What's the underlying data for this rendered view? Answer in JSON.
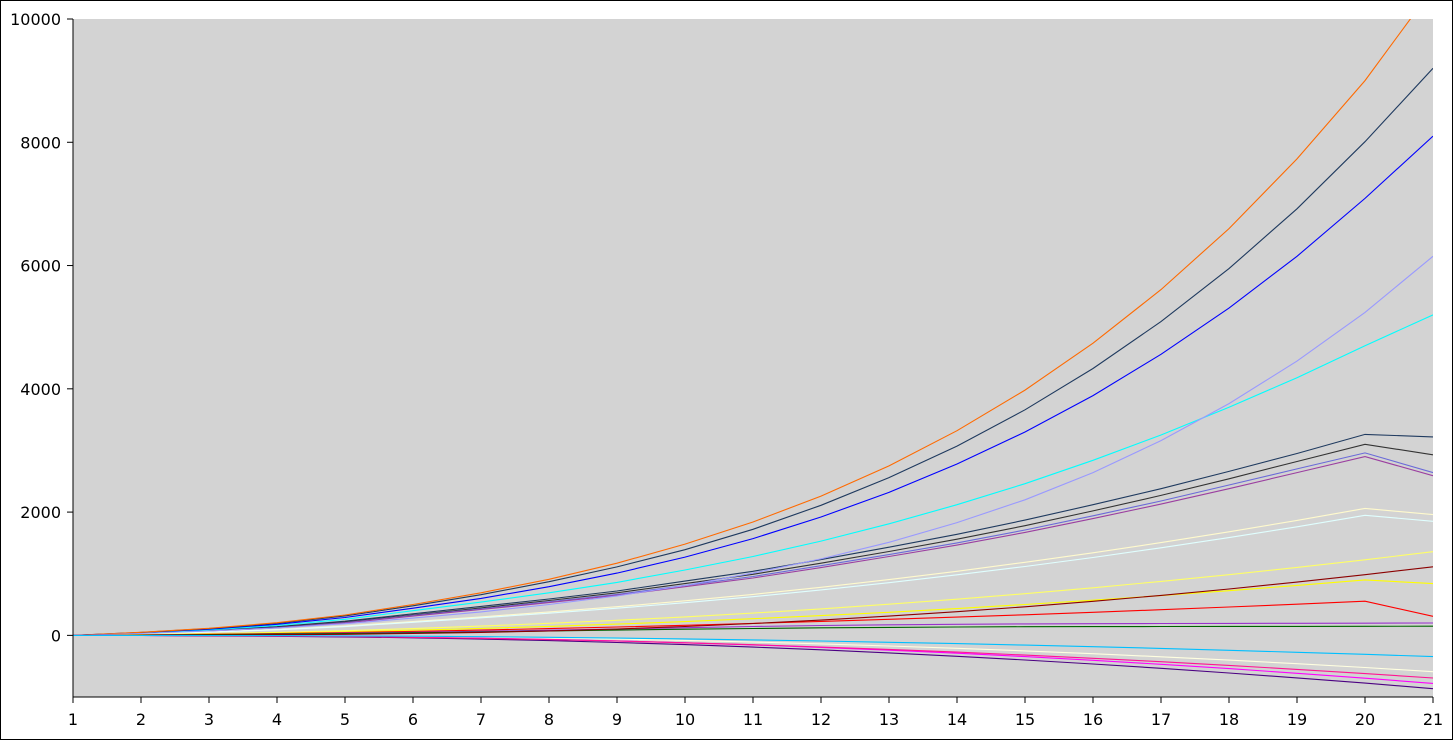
{
  "chart_data": {
    "type": "line",
    "title": "",
    "xlabel": "",
    "ylabel": "",
    "xlim": [
      1,
      21
    ],
    "ylim": [
      -1000,
      10000
    ],
    "x_ticks": [
      "1",
      "2",
      "3",
      "4",
      "5",
      "6",
      "7",
      "8",
      "9",
      "10",
      "11",
      "12",
      "13",
      "14",
      "15",
      "16",
      "17",
      "18",
      "19",
      "20",
      "21"
    ],
    "y_ticks": [
      "0",
      "2000",
      "4000",
      "6000",
      "8000",
      "10000"
    ],
    "grid": false,
    "legend": "none",
    "plot_background": "#d3d3d3",
    "x": [
      1,
      2,
      3,
      4,
      5,
      6,
      7,
      8,
      9,
      10,
      11,
      12,
      13,
      14,
      15,
      16,
      17,
      18,
      19,
      20,
      21
    ],
    "series": [
      {
        "color": "#1f3a5f",
        "values": [
          0,
          35,
          80,
          140,
          230,
          350,
          470,
          590,
          720,
          880,
          1040,
          1230,
          1430,
          1640,
          1870,
          2120,
          2380,
          2660,
          2950,
          3260,
          3220
        ]
      },
      {
        "color": "#333333",
        "values": [
          0,
          32,
          75,
          130,
          215,
          330,
          445,
          565,
          690,
          840,
          990,
          1170,
          1360,
          1560,
          1780,
          2020,
          2270,
          2540,
          2820,
          3100,
          2930
        ]
      },
      {
        "color": "#6a6ad8",
        "values": [
          0,
          30,
          70,
          125,
          205,
          320,
          430,
          545,
          665,
          810,
          955,
          1130,
          1310,
          1500,
          1710,
          1940,
          2180,
          2440,
          2700,
          2960,
          2640
        ]
      },
      {
        "color": "#9b3fa0",
        "values": [
          0,
          30,
          68,
          122,
          200,
          312,
          420,
          532,
          650,
          790,
          930,
          1100,
          1280,
          1465,
          1670,
          1895,
          2130,
          2380,
          2640,
          2900,
          2590
        ]
      },
      {
        "color": "#fffacd",
        "values": [
          0,
          25,
          55,
          95,
          150,
          225,
          300,
          380,
          465,
          560,
          665,
          780,
          905,
          1040,
          1185,
          1340,
          1505,
          1680,
          1865,
          2060,
          1960
        ]
      },
      {
        "color": "#e0ffff",
        "values": [
          0,
          24,
          52,
          90,
          142,
          212,
          285,
          360,
          440,
          530,
          628,
          737,
          855,
          982,
          1118,
          1264,
          1420,
          1586,
          1762,
          1948,
          1850
        ]
      },
      {
        "color": "#00ffff",
        "values": [
          0,
          40,
          90,
          160,
          260,
          400,
          540,
          690,
          860,
          1060,
          1280,
          1530,
          1810,
          2120,
          2460,
          2840,
          3250,
          3700,
          4180,
          4700,
          5200
        ]
      },
      {
        "color": "#0000ff",
        "values": [
          0,
          45,
          100,
          180,
          290,
          440,
          600,
          790,
          1010,
          1270,
          1570,
          1920,
          2320,
          2780,
          3300,
          3890,
          4560,
          5310,
          6150,
          7090,
          8100
        ]
      },
      {
        "color": "#1f3a5f",
        "values": [
          0,
          48,
          110,
          195,
          315,
          480,
          660,
          870,
          1110,
          1390,
          1720,
          2110,
          2560,
          3070,
          3660,
          4330,
          5090,
          5950,
          6920,
          8010,
          9200
        ]
      },
      {
        "color": "#ff6a00",
        "values": [
          0,
          50,
          115,
          205,
          330,
          500,
          690,
          910,
          1170,
          1480,
          1840,
          2260,
          2750,
          3320,
          3980,
          4740,
          5610,
          6600,
          7730,
          9000,
          10500
        ]
      },
      {
        "color": "#9999ff",
        "values": [
          0,
          30,
          70,
          120,
          190,
          280,
          380,
          500,
          640,
          810,
          1010,
          1240,
          1510,
          1830,
          2200,
          2640,
          3160,
          3760,
          4450,
          5240,
          6150
        ]
      },
      {
        "color": "#ffff66",
        "values": [
          0,
          12,
          28,
          48,
          75,
          110,
          150,
          195,
          245,
          300,
          362,
          430,
          505,
          587,
          676,
          772,
          875,
          985,
          1102,
          1226,
          1358
        ]
      },
      {
        "color": "#ffff00",
        "values": [
          0,
          10,
          22,
          38,
          58,
          84,
          113,
          146,
          183,
          224,
          270,
          320,
          375,
          435,
          500,
          570,
          645,
          725,
          810,
          900,
          840
        ]
      },
      {
        "color": "#ff0000",
        "values": [
          0,
          8,
          18,
          30,
          45,
          64,
          86,
          110,
          136,
          164,
          194,
          226,
          260,
          296,
          334,
          374,
          416,
          460,
          506,
          554,
          310
        ]
      },
      {
        "color": "#9932cc",
        "values": [
          0,
          6,
          14,
          24,
          36,
          50,
          66,
          84,
          104,
          124,
          144,
          160,
          172,
          180,
          186,
          190,
          192,
          194,
          196,
          198,
          200
        ]
      },
      {
        "color": "#006400",
        "values": [
          0,
          5,
          12,
          20,
          30,
          42,
          55,
          70,
          86,
          100,
          112,
          122,
          130,
          136,
          140,
          142,
          144,
          145,
          146,
          147,
          148
        ]
      },
      {
        "color": "#ff00ff",
        "values": [
          0,
          -2,
          -5,
          -10,
          -18,
          -30,
          -45,
          -65,
          -90,
          -120,
          -155,
          -195,
          -240,
          -290,
          -345,
          -405,
          -470,
          -540,
          -615,
          -695,
          -780
        ]
      },
      {
        "color": "#ffffe0",
        "values": [
          0,
          -1,
          -3,
          -6,
          -10,
          -18,
          -28,
          -42,
          -60,
          -82,
          -108,
          -138,
          -172,
          -210,
          -252,
          -298,
          -348,
          -402,
          -460,
          -522,
          -590
        ]
      },
      {
        "color": "#8b0000",
        "values": [
          0,
          2,
          5,
          10,
          18,
          30,
          48,
          72,
          104,
          144,
          192,
          248,
          312,
          384,
          464,
          552,
          648,
          752,
          864,
          984,
          1112
        ]
      },
      {
        "color": "#4b0082",
        "values": [
          0,
          -3,
          -8,
          -15,
          -25,
          -40,
          -60,
          -85,
          -115,
          -150,
          -190,
          -235,
          -285,
          -340,
          -400,
          -465,
          -535,
          -610,
          -690,
          -775,
          -865
        ]
      },
      {
        "color": "#ff1493",
        "values": [
          0,
          -2,
          -6,
          -12,
          -20,
          -32,
          -48,
          -68,
          -92,
          -120,
          -152,
          -188,
          -228,
          -272,
          -320,
          -372,
          -428,
          -488,
          -552,
          -620,
          -692
        ]
      },
      {
        "color": "#00bfff",
        "values": [
          0,
          -1,
          -2,
          -4,
          -8,
          -14,
          -22,
          -32,
          -44,
          -58,
          -74,
          -92,
          -112,
          -134,
          -158,
          -184,
          -212,
          -242,
          -274,
          -308,
          -344
        ]
      }
    ]
  }
}
